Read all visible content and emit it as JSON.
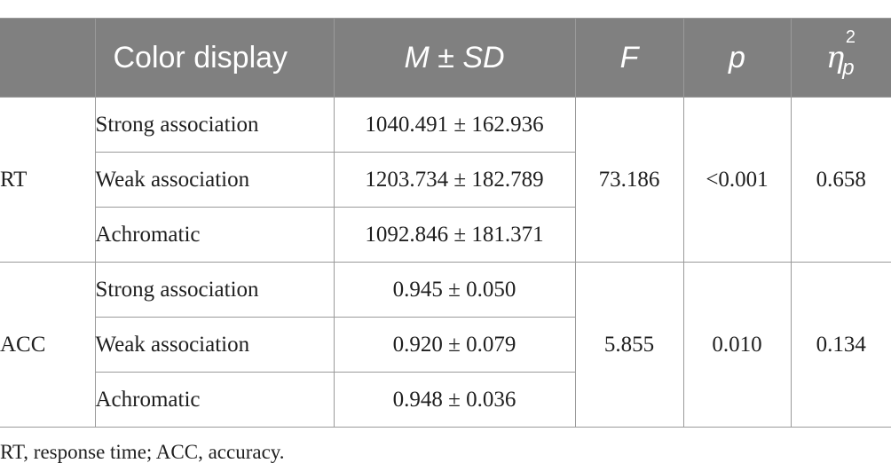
{
  "table": {
    "headers": {
      "measure": "",
      "color_display": "Color display",
      "m_sd": "M ± SD",
      "f": "F",
      "p": "p",
      "eta_symbol": "η",
      "eta_superscript": "2",
      "eta_subscript": "p"
    },
    "groups": [
      {
        "measure": "RT",
        "f": "73.186",
        "p": "<0.001",
        "eta": "0.658",
        "rows": [
          {
            "condition": "Strong association",
            "m_sd": "1040.491 ± 162.936"
          },
          {
            "condition": "Weak association",
            "m_sd": "1203.734 ± 182.789"
          },
          {
            "condition": "Achromatic",
            "m_sd": "1092.846 ± 181.371"
          }
        ]
      },
      {
        "measure": "ACC",
        "f": "5.855",
        "p": "0.010",
        "eta": "0.134",
        "rows": [
          {
            "condition": "Strong association",
            "m_sd": "0.945 ± 0.050"
          },
          {
            "condition": "Weak association",
            "m_sd": "0.920 ± 0.079"
          },
          {
            "condition": "Achromatic",
            "m_sd": "0.948 ± 0.036"
          }
        ]
      }
    ]
  },
  "footnote": "RT, response time; ACC, accuracy.",
  "colors": {
    "header_background": "#808080",
    "header_text": "#ffffff",
    "border": "#9a9a9a"
  }
}
